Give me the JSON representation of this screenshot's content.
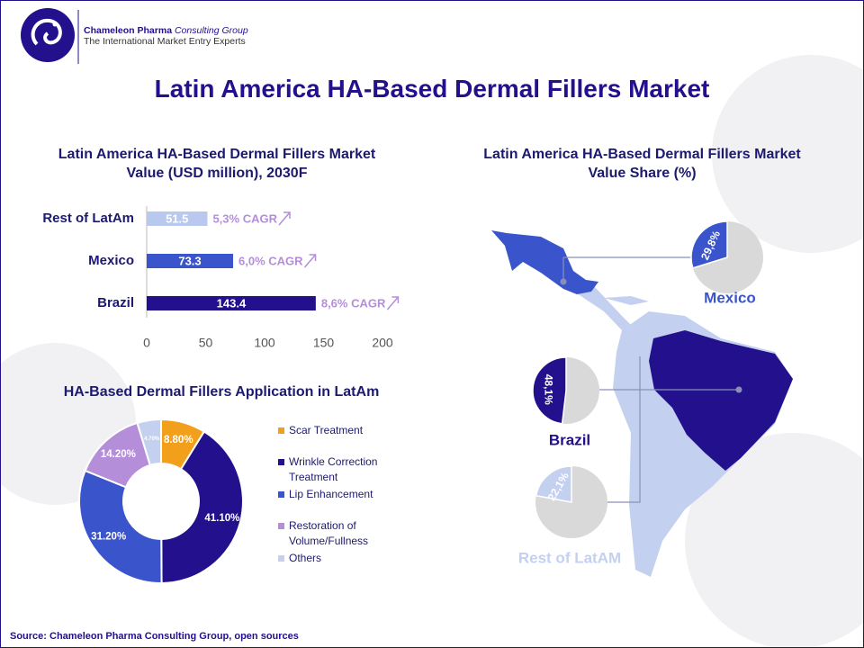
{
  "header": {
    "company": "Chameleon Pharma",
    "company_suffix": "Consulting Group",
    "tagline": "The International Market Entry Experts"
  },
  "title": "Latin America HA-Based Dermal Fillers Market",
  "chart_data": [
    {
      "type": "bar",
      "orientation": "horizontal",
      "title": "Latin America HA-Based Dermal Fillers Market Value (USD million), 2030F",
      "categories": [
        "Rest of LatAm",
        "Mexico",
        "Brazil"
      ],
      "values": [
        51.5,
        73.3,
        143.4
      ],
      "colors": [
        "#b9c8ee",
        "#3a55cc",
        "#22108c"
      ],
      "annotations": [
        "5,3% CAGR",
        "6,0% CAGR",
        "8,6% CAGR"
      ],
      "annotation_color": "#b48ed8",
      "xlim": [
        0,
        200
      ],
      "xticks": [
        0,
        50,
        100,
        150,
        200
      ]
    },
    {
      "type": "donut",
      "title": "HA-Based Dermal Fillers Application in LatAm",
      "categories": [
        "Scar Treatment",
        "Wrinkle Correction Treatment",
        "Lip Enhancement",
        "Restoration of Volume/Fullness",
        "Others"
      ],
      "values": [
        8.8,
        41.1,
        31.2,
        14.2,
        4.7
      ],
      "value_labels": [
        "8.80%",
        "41.10%",
        "31.20%",
        "14.20%",
        "4.70%"
      ],
      "colors": [
        "#f29f1b",
        "#22108c",
        "#3a55cc",
        "#b48ed8",
        "#c3d0f0"
      ]
    },
    {
      "type": "pie",
      "title": "Latin America HA-Based Dermal Fillers Market Value Share (%)",
      "categories": [
        "Mexico",
        "Brazil",
        "Rest of LatAM"
      ],
      "values": [
        29.8,
        48.1,
        22.1
      ],
      "value_labels": [
        "29,8%",
        "48,1%",
        "22,1%"
      ],
      "colors": [
        "#3a55cc",
        "#22108c",
        "#c3d0f0"
      ]
    }
  ],
  "source": "Source: Chameleon Pharma Consulting Group, open sources"
}
